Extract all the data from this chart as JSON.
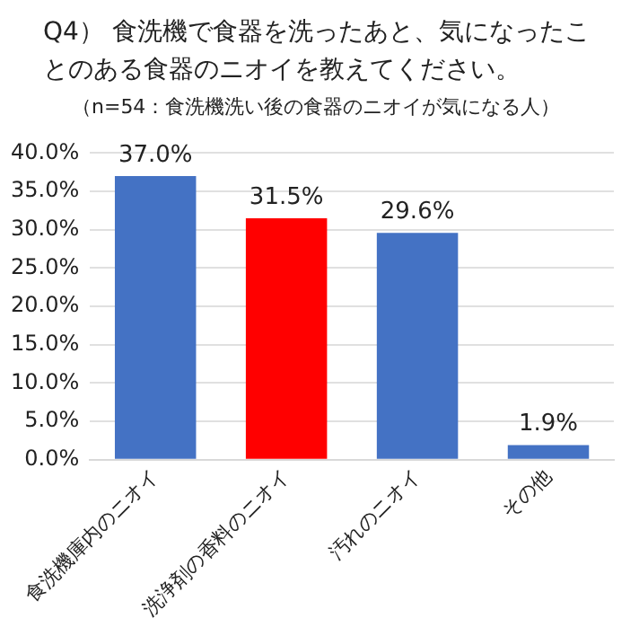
{
  "chart_data": {
    "type": "bar",
    "title": "Q4） 食洗機で食器を洗ったあと、気になったことのある食器のニオイを教えてください。",
    "subtitle": "（n=54：食洗機洗い後の食器のニオイが気になる人）",
    "categories": [
      "食洗機庫内のニオイ",
      "洗浄剤の香料のニオイ",
      "汚れのニオイ",
      "その他"
    ],
    "values": [
      37.0,
      31.5,
      29.6,
      1.9
    ],
    "colors": [
      "#4472c4",
      "#ff0000",
      "#4472c4",
      "#4472c4"
    ],
    "value_labels": [
      "37.0%",
      "31.5%",
      "29.6%",
      "1.9%"
    ],
    "ylim": [
      0,
      40
    ],
    "yticks": [
      {
        "value": 0,
        "label": "0.0%"
      },
      {
        "value": 5,
        "label": "5.0%"
      },
      {
        "value": 10,
        "label": "10.0%"
      },
      {
        "value": 15,
        "label": "15.0%"
      },
      {
        "value": 20,
        "label": "20.0%"
      },
      {
        "value": 25,
        "label": "25.0%"
      },
      {
        "value": 30,
        "label": "30.0%"
      },
      {
        "value": 35,
        "label": "35.0%"
      },
      {
        "value": 40,
        "label": "40.0%"
      }
    ],
    "grid": "y",
    "legend": false
  }
}
